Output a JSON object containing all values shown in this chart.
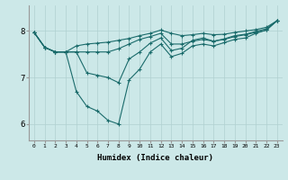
{
  "xlabel": "Humidex (Indice chaleur)",
  "xlim": [
    -0.5,
    23.5
  ],
  "ylim": [
    5.65,
    8.55
  ],
  "xtick_labels": [
    "0",
    "1",
    "2",
    "3",
    "4",
    "5",
    "6",
    "7",
    "8",
    "9",
    "10",
    "11",
    "12",
    "13",
    "14",
    "15",
    "16",
    "17",
    "18",
    "19",
    "20",
    "21",
    "22",
    "23"
  ],
  "xtick_pos": [
    0,
    1,
    2,
    3,
    4,
    5,
    6,
    7,
    8,
    9,
    10,
    11,
    12,
    13,
    14,
    15,
    16,
    17,
    18,
    19,
    20,
    21,
    22,
    23
  ],
  "yticks": [
    6,
    7,
    8
  ],
  "background_color": "#cce8e8",
  "line_color": "#1a6b6b",
  "grid_color": "#b0d0d0",
  "upper_line": [
    7.97,
    7.65,
    7.55,
    7.55,
    7.68,
    7.72,
    7.74,
    7.76,
    7.8,
    7.84,
    7.9,
    7.95,
    8.02,
    7.95,
    7.9,
    7.92,
    7.95,
    7.92,
    7.93,
    7.97,
    8.0,
    8.03,
    8.08,
    8.22
  ],
  "lower_line": [
    7.97,
    7.65,
    7.55,
    7.55,
    7.55,
    7.55,
    7.55,
    7.55,
    7.62,
    7.72,
    7.82,
    7.88,
    7.95,
    7.72,
    7.72,
    7.78,
    7.82,
    7.78,
    7.82,
    7.88,
    7.92,
    7.97,
    8.02,
    8.22
  ],
  "zigzag_line": [
    7.97,
    7.65,
    7.55,
    7.55,
    6.7,
    6.38,
    6.28,
    6.08,
    6.0,
    6.95,
    7.18,
    7.55,
    7.72,
    7.45,
    7.52,
    7.68,
    7.72,
    7.68,
    7.75,
    7.82,
    7.85,
    7.95,
    8.02,
    8.22
  ],
  "zigzag2_line": [
    7.97,
    7.65,
    7.55,
    7.55,
    7.55,
    7.1,
    7.05,
    7.0,
    6.89,
    7.4,
    7.55,
    7.74,
    7.85,
    7.58,
    7.63,
    7.8,
    7.85,
    7.78,
    7.83,
    7.9,
    7.93,
    7.99,
    8.05,
    8.22
  ]
}
